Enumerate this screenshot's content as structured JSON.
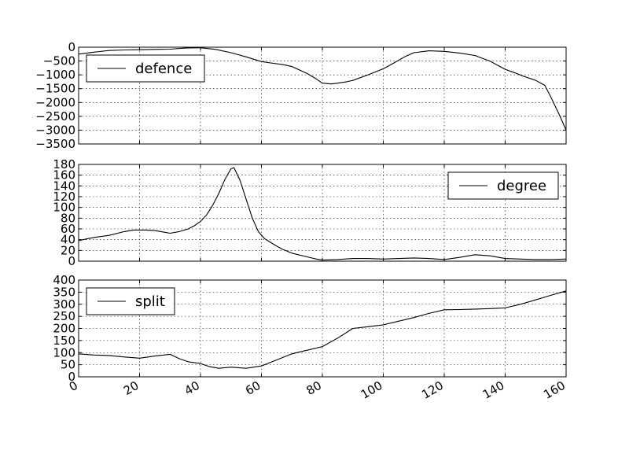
{
  "chart_data": [
    {
      "type": "line",
      "title": "",
      "xlabel": "",
      "ylabel": "",
      "xlim": [
        0,
        160
      ],
      "ylim": [
        -3500,
        0
      ],
      "grid": true,
      "legend_position": "upper-left",
      "x_ticks": [
        0,
        20,
        40,
        60,
        80,
        100,
        120,
        140,
        160
      ],
      "x_tick_labels_visible": false,
      "y_ticks": [
        -3500,
        -3000,
        -2500,
        -2000,
        -1500,
        -1000,
        -500,
        0
      ],
      "y_tick_labels": [
        "−3500",
        "−3000",
        "−2500",
        "−2000",
        "−1500",
        "−1000",
        "−500",
        "0"
      ],
      "series": [
        {
          "name": "defence",
          "x": [
            0,
            5,
            10,
            15,
            20,
            25,
            30,
            35,
            40,
            45,
            50,
            55,
            60,
            63,
            67,
            70,
            75,
            78,
            80,
            83,
            85,
            88,
            90,
            95,
            100,
            103,
            107,
            110,
            115,
            120,
            125,
            130,
            135,
            140,
            143,
            146,
            150,
            153,
            155,
            158,
            160
          ],
          "y": [
            -250,
            -180,
            -120,
            -100,
            -90,
            -80,
            -70,
            -30,
            -20,
            -80,
            -200,
            -350,
            -520,
            -570,
            -630,
            -700,
            -950,
            -1150,
            -1300,
            -1330,
            -1300,
            -1250,
            -1200,
            -1000,
            -780,
            -600,
            -350,
            -200,
            -130,
            -150,
            -210,
            -300,
            -500,
            -800,
            -920,
            -1050,
            -1200,
            -1380,
            -1800,
            -2500,
            -3000
          ]
        }
      ]
    },
    {
      "type": "line",
      "title": "",
      "xlabel": "",
      "ylabel": "",
      "xlim": [
        0,
        160
      ],
      "ylim": [
        0,
        180
      ],
      "grid": true,
      "legend_position": "upper-right",
      "x_ticks": [
        0,
        20,
        40,
        60,
        80,
        100,
        120,
        140,
        160
      ],
      "x_tick_labels_visible": false,
      "y_ticks": [
        0,
        20,
        40,
        60,
        80,
        100,
        120,
        140,
        160,
        180
      ],
      "y_tick_labels": [
        "0",
        "20",
        "40",
        "60",
        "80",
        "100",
        "120",
        "140",
        "160",
        "180"
      ],
      "series": [
        {
          "name": "degree",
          "x": [
            0,
            3,
            6,
            10,
            15,
            18,
            20,
            22,
            25,
            28,
            30,
            33,
            36,
            38,
            40,
            42,
            44,
            46,
            48,
            50,
            51,
            53,
            55,
            57,
            59,
            61,
            63,
            65,
            67,
            70,
            75,
            78,
            80,
            85,
            90,
            95,
            100,
            105,
            110,
            115,
            120,
            125,
            130,
            135,
            140,
            145,
            150,
            155,
            160
          ],
          "y": [
            38,
            42,
            45,
            48,
            55,
            58,
            58,
            58,
            57,
            54,
            52,
            55,
            60,
            66,
            74,
            86,
            104,
            126,
            152,
            172,
            174,
            150,
            115,
            80,
            55,
            42,
            35,
            28,
            22,
            15,
            8,
            4,
            2,
            3,
            5,
            5,
            4,
            5,
            6,
            5,
            3,
            7,
            12,
            10,
            5,
            4,
            3,
            3,
            4
          ]
        }
      ]
    },
    {
      "type": "line",
      "title": "",
      "xlabel": "",
      "ylabel": "",
      "xlim": [
        0,
        160
      ],
      "ylim": [
        0,
        400
      ],
      "grid": true,
      "legend_position": "upper-left",
      "x_ticks": [
        0,
        20,
        40,
        60,
        80,
        100,
        120,
        140,
        160
      ],
      "x_tick_labels": [
        "0",
        "20",
        "40",
        "60",
        "80",
        "100",
        "120",
        "140",
        "160"
      ],
      "x_tick_labels_visible": true,
      "y_ticks": [
        0,
        50,
        100,
        150,
        200,
        250,
        300,
        350,
        400
      ],
      "y_tick_labels": [
        "0",
        "50",
        "100",
        "150",
        "200",
        "250",
        "300",
        "350",
        "400"
      ],
      "series": [
        {
          "name": "split",
          "x": [
            0,
            5,
            10,
            15,
            20,
            25,
            30,
            33,
            36,
            40,
            43,
            46,
            50,
            55,
            60,
            65,
            70,
            75,
            80,
            85,
            90,
            95,
            100,
            105,
            110,
            115,
            120,
            125,
            130,
            135,
            140,
            145,
            150,
            155,
            160
          ],
          "y": [
            95,
            90,
            88,
            82,
            77,
            86,
            93,
            75,
            62,
            55,
            42,
            35,
            40,
            35,
            45,
            70,
            95,
            110,
            125,
            160,
            200,
            207,
            215,
            230,
            245,
            262,
            277,
            278,
            280,
            282,
            285,
            300,
            318,
            337,
            355
          ]
        }
      ]
    }
  ]
}
